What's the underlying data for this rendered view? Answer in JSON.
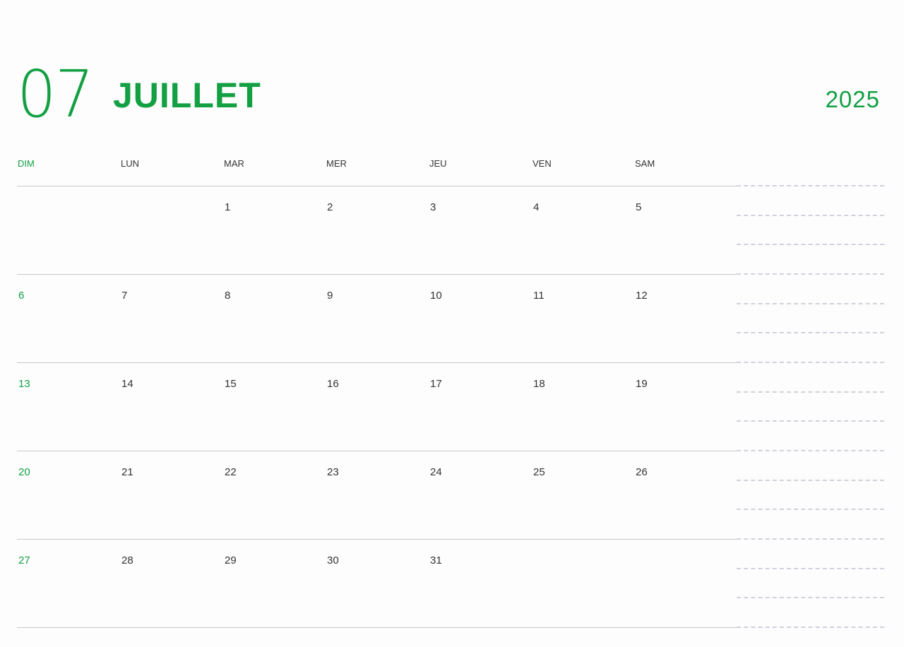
{
  "header": {
    "month_number": "07",
    "month_name": "JUILLET",
    "year": "2025"
  },
  "weekdays": [
    "DIM",
    "LUN",
    "MAR",
    "MER",
    "JEU",
    "VEN",
    "SAM"
  ],
  "weeks": [
    [
      "",
      "",
      "1",
      "2",
      "3",
      "4",
      "5"
    ],
    [
      "6",
      "7",
      "8",
      "9",
      "10",
      "11",
      "12"
    ],
    [
      "13",
      "14",
      "15",
      "16",
      "17",
      "18",
      "19"
    ],
    [
      "20",
      "21",
      "22",
      "23",
      "24",
      "25",
      "26"
    ],
    [
      "27",
      "28",
      "29",
      "30",
      "31",
      "",
      ""
    ]
  ],
  "colors": {
    "accent": "#12a043",
    "text": "#333333",
    "grid": "#c8c8cc",
    "notes_dash": "#d4cfdc"
  }
}
